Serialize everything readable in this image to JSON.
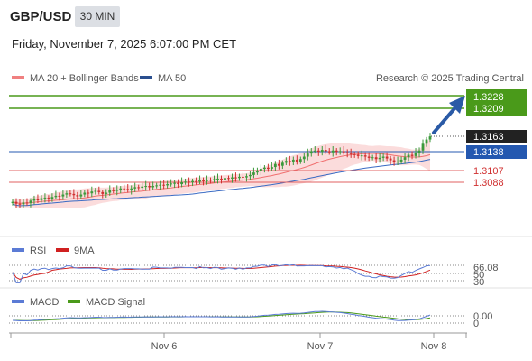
{
  "header": {
    "symbol": "GBP/USD",
    "timeframe": "30 MIN",
    "datetime": "Friday, November 7, 2025 6:07:00 PM CET"
  },
  "main_legend": [
    {
      "label": "MA 20 + Bollinger Bands",
      "color": "#f08080"
    },
    {
      "label": "MA 50",
      "color": "#2a4f8f"
    }
  ],
  "source": "Research © 2025 Trading Central",
  "colors": {
    "up": "#3c9a3c",
    "down": "#d03030",
    "target": "#4a9a1a",
    "pivot": "#2458b0",
    "support": "#e06060",
    "band": "#f7c8c8",
    "ma50": "#3a6bc4",
    "ma20": "#f07070"
  },
  "chart_data": [
    {
      "type": "candlestick",
      "x_range": [
        "Nov 5",
        "Nov 8"
      ],
      "y_range": [
        1.304,
        1.324
      ],
      "levels": [
        {
          "value": 1.3228,
          "label": "1.3228",
          "kind": "target"
        },
        {
          "value": 1.3209,
          "label": "1.3209",
          "kind": "target"
        },
        {
          "value": 1.3163,
          "label": "1.3163",
          "kind": "last"
        },
        {
          "value": 1.3138,
          "label": "1.3138",
          "kind": "pivot"
        },
        {
          "value": 1.3107,
          "label": "1.3107",
          "kind": "support"
        },
        {
          "value": 1.3088,
          "label": "1.3088",
          "kind": "support"
        }
      ],
      "close": [
        1.3056,
        1.3053,
        1.3052,
        1.3055,
        1.3054,
        1.3058,
        1.306,
        1.3059,
        1.3062,
        1.3063,
        1.3061,
        1.3064,
        1.3066,
        1.3065,
        1.3068,
        1.307,
        1.3069,
        1.3067,
        1.3065,
        1.3068,
        1.3071,
        1.307,
        1.3073,
        1.3074,
        1.3072,
        1.3069,
        1.3071,
        1.3075,
        1.3074,
        1.3076,
        1.3078,
        1.3077,
        1.3075,
        1.3078,
        1.308,
        1.3079,
        1.3081,
        1.3082,
        1.308,
        1.3082,
        1.3083,
        1.3084,
        1.3083,
        1.3085,
        1.3086,
        1.3087,
        1.3085,
        1.3088,
        1.3089,
        1.3088,
        1.309,
        1.3089,
        1.3091,
        1.309,
        1.3092,
        1.3091,
        1.3093,
        1.3094,
        1.3092,
        1.3095,
        1.3094,
        1.3096,
        1.3095,
        1.3097,
        1.3096,
        1.3098,
        1.31,
        1.3104,
        1.3107,
        1.311,
        1.3112,
        1.311,
        1.3113,
        1.3118,
        1.3115,
        1.312,
        1.3123,
        1.3122,
        1.3125,
        1.3122,
        1.3126,
        1.313,
        1.3135,
        1.3139,
        1.314,
        1.3138,
        1.3141,
        1.3139,
        1.3137,
        1.314,
        1.3138,
        1.3139,
        1.3137,
        1.3136,
        1.3134,
        1.3133,
        1.3131,
        1.3132,
        1.313,
        1.3128,
        1.3129,
        1.3126,
        1.3128,
        1.313,
        1.3127,
        1.3124,
        1.3121,
        1.3122,
        1.3125,
        1.3129,
        1.3133,
        1.3131,
        1.3136,
        1.314,
        1.3151,
        1.3158,
        1.3163
      ]
    },
    {
      "type": "line",
      "name": "RSI",
      "legend": [
        {
          "label": "RSI",
          "color": "#5b7bd5"
        },
        {
          "label": "9MA",
          "color": "#d02020"
        }
      ],
      "ticks": [
        "66.08",
        "50",
        "30"
      ],
      "y_range": [
        20,
        80
      ]
    },
    {
      "type": "line",
      "name": "MACD",
      "legend": [
        {
          "label": "MACD",
          "color": "#5b7bd5"
        },
        {
          "label": "MACD Signal",
          "color": "#4a9a1a"
        }
      ],
      "ticks": [
        "0.00",
        "0"
      ],
      "x_labels": [
        "Nov 6",
        "Nov 7",
        "Nov 8"
      ]
    }
  ]
}
